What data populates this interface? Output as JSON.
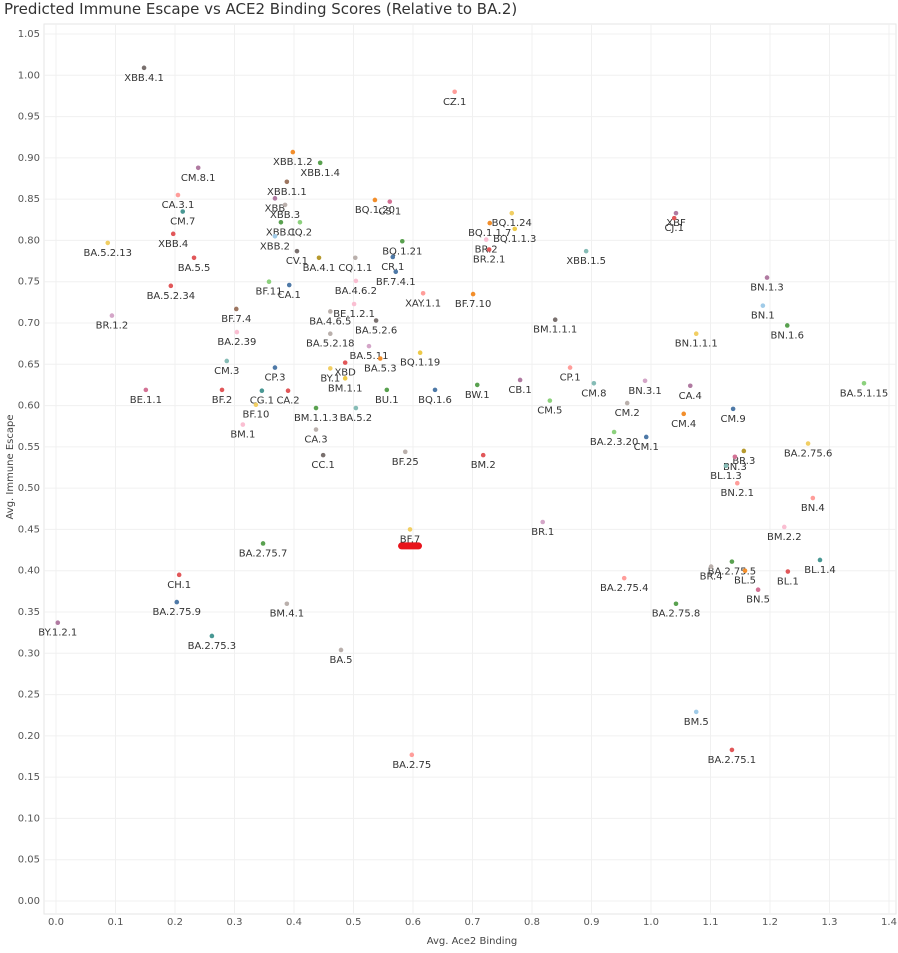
{
  "chart_data": {
    "type": "scatter",
    "title": "Predicted Immune Escape vs ACE2 Binding Scores (Relative to BA.2)",
    "x_label": "Avg. Ace2 Binding",
    "y_label": "Avg. Immune Escape",
    "xlim": [
      0,
      1.4
    ],
    "ylim": [
      0,
      1.05
    ],
    "xticks": [
      {
        "value": 0,
        "label": "0.0"
      },
      0.1,
      0.2,
      0.3,
      0.4,
      0.5,
      0.6,
      0.7,
      0.8,
      0.9,
      {
        "value": 1,
        "label": "1.0"
      },
      1.1,
      1.2,
      1.3,
      1.4
    ],
    "yticks": [
      {
        "value": 0,
        "label": "0.00"
      },
      0.05,
      {
        "value": 0.1,
        "label": "0.10"
      },
      0.15,
      {
        "value": 0.2,
        "label": "0.20"
      },
      0.25,
      {
        "value": 0.3,
        "label": "0.30"
      },
      0.35,
      {
        "value": 0.4,
        "label": "0.40"
      },
      0.45,
      {
        "value": 0.5,
        "label": "0.50"
      },
      0.55,
      {
        "value": 0.6,
        "label": "0.60"
      },
      0.65,
      {
        "value": 0.7,
        "label": "0.70"
      },
      0.75,
      {
        "value": 0.8,
        "label": "0.80"
      },
      0.85,
      {
        "value": 0.9,
        "label": "0.90"
      },
      0.95,
      {
        "value": 1,
        "label": "1.00"
      },
      1.05
    ],
    "grid": true,
    "highlight": "BF.7",
    "highlight_color": "#e8141c",
    "labels": [
      "XBB.4.1",
      "CZ.1",
      "XBB.1.2",
      "XBB.1.4",
      "CM.8.1",
      "XBB.1.1",
      "XBB",
      "XBB.3",
      "CA.3.1",
      "BQ.1.20",
      "CS.1",
      "BQ.1.24",
      "XBF",
      "CJ.1",
      "CM.7",
      "XBB.1",
      "CQ.2",
      "BQ.1.1.7",
      "BQ.1.1.3",
      "XBB.4",
      "BQ.1.21",
      "BR.2",
      "XBB.2",
      "BA.5.2.13",
      "CV.1",
      "BR.2.1",
      "XBB.1.5",
      "CR.1",
      "BA.4.1",
      "CQ.1.1",
      "BA.5.5",
      "BF.7.4.1",
      "BN.1.3",
      "BF.11",
      "CA.1",
      "BA.4.6.2",
      "XAY.1.1",
      "BA.5.2.34",
      "BN.1",
      "BF.7.10",
      "BE.1.2.1",
      "BM.1.1.1",
      "BR.1.2",
      "BF.7.4",
      "BA.4.6.5",
      "BN.1.6",
      "BA.5.2.6",
      "BA.5.2.18",
      "BN.1.1.1",
      "BA.2.39",
      "BA.5.11",
      "BQ.1.19",
      "BA.5.3",
      "XBD",
      "CM.3",
      "CP.3",
      "BY.1",
      "CP.1",
      "BM.1.1",
      "CB.1",
      "CM.8",
      "BN.3.1",
      "BW.1",
      "CA.4",
      "BA.5.1.15",
      "CG.1",
      "CA.2",
      "BU.1",
      "BE.1.1",
      "BF.2",
      "BQ.1.6",
      "BA.5.2",
      "CM.5",
      "CM.2",
      "BF.10",
      "BM.1.1.3",
      "CM.9",
      "CM.4",
      "BM.1",
      "CA.3",
      "BA.2.3.20",
      "CM.1",
      "BA.2.75.6",
      "BR.3",
      "BN.3",
      "CC.1",
      "BF.25",
      "BM.2",
      "BL.1.3",
      "BN.2.1",
      "BN.4",
      "BR.1",
      "BM.2.2",
      "BF.7",
      "BA.2.75.7",
      "BL.1.4",
      "BA.2.75.5",
      "BL.1",
      "BR.4",
      "BL.5",
      "CH.1",
      "BA.2.75.4",
      "BN.5",
      "BA.2.75.9",
      "BM.4.1",
      "BA.2.75.8",
      "BY.1.2.1",
      "BA.2.75.3",
      "BA.5",
      "BM.5",
      "BA.2.75",
      "BA.2.75.1"
    ],
    "x": [
      0.148,
      0.67,
      0.398,
      0.444,
      0.239,
      0.388,
      0.368,
      0.385,
      0.205,
      0.536,
      0.561,
      0.766,
      1.042,
      1.039,
      0.213,
      0.378,
      0.41,
      0.729,
      0.771,
      0.197,
      0.582,
      0.723,
      0.368,
      0.087,
      0.405,
      0.728,
      0.891,
      0.566,
      0.442,
      0.503,
      0.232,
      0.571,
      1.195,
      0.358,
      0.392,
      0.504,
      0.617,
      0.193,
      1.188,
      0.701,
      0.501,
      0.839,
      0.094,
      0.303,
      0.461,
      1.229,
      0.538,
      0.461,
      1.076,
      0.304,
      0.526,
      0.612,
      0.545,
      0.486,
      0.287,
      0.368,
      0.461,
      0.864,
      0.486,
      0.78,
      0.904,
      0.99,
      0.708,
      1.066,
      1.358,
      0.346,
      0.39,
      0.556,
      0.151,
      0.279,
      0.637,
      0.504,
      0.83,
      0.96,
      0.336,
      0.437,
      1.138,
      1.055,
      0.314,
      0.437,
      0.938,
      0.992,
      1.264,
      1.156,
      1.141,
      0.449,
      0.587,
      0.718,
      1.126,
      1.145,
      1.272,
      0.818,
      1.224,
      0.595,
      0.348,
      1.284,
      1.136,
      1.23,
      1.101,
      1.158,
      0.207,
      0.955,
      1.18,
      0.203,
      0.388,
      1.042,
      0.003,
      0.262,
      0.479,
      1.076,
      0.598,
      1.136
    ],
    "values": [
      1.009,
      0.98,
      0.907,
      0.894,
      0.888,
      0.871,
      0.851,
      0.843,
      0.855,
      0.849,
      0.847,
      0.833,
      0.833,
      0.827,
      0.835,
      0.822,
      0.822,
      0.821,
      0.814,
      0.808,
      0.799,
      0.801,
      0.805,
      0.797,
      0.787,
      0.789,
      0.787,
      0.78,
      0.779,
      0.779,
      0.779,
      0.762,
      0.755,
      0.75,
      0.746,
      0.751,
      0.736,
      0.745,
      0.721,
      0.735,
      0.723,
      0.704,
      0.709,
      0.717,
      0.714,
      0.697,
      0.703,
      0.687,
      0.687,
      0.689,
      0.672,
      0.664,
      0.657,
      0.652,
      0.654,
      0.646,
      0.645,
      0.646,
      0.633,
      0.631,
      0.627,
      0.63,
      0.625,
      0.624,
      0.627,
      0.618,
      0.618,
      0.619,
      0.619,
      0.619,
      0.619,
      0.597,
      0.606,
      0.603,
      0.601,
      0.597,
      0.596,
      0.59,
      0.577,
      0.571,
      0.568,
      0.562,
      0.554,
      0.545,
      0.538,
      0.54,
      0.544,
      0.54,
      0.527,
      0.506,
      0.488,
      0.459,
      0.453,
      0.45,
      0.433,
      0.413,
      0.411,
      0.399,
      0.405,
      0.4,
      0.395,
      0.391,
      0.377,
      0.362,
      0.36,
      0.36,
      0.337,
      0.321,
      0.304,
      0.229,
      0.177,
      0.183
    ],
    "colors": [
      "#79706e",
      "#ff9d9a",
      "#f28e2b",
      "#59a14f",
      "#b07aa1",
      "#9c755f",
      "#af7aa1",
      "#bab0ac",
      "#ff9d9a",
      "#f28e2b",
      "#d37295",
      "#f1ce63",
      "#b07aa1",
      "#e15759",
      "#499894",
      "#59a14f",
      "#8cd17d",
      "#f28e2b",
      "#edc948",
      "#e15759",
      "#59a14f",
      "#fabfd2",
      "#a0cbe8",
      "#f1ce63",
      "#79706e",
      "#e15759",
      "#86bcb6",
      "#4e79a7",
      "#b6992d",
      "#bab0ac",
      "#e15759",
      "#4e79a7",
      "#b07aa1",
      "#8cd17d",
      "#4e79a7",
      "#fabfd2",
      "#ff9d9a",
      "#e15759",
      "#a0cbe8",
      "#f28e2b",
      "#fabfd2",
      "#79706e",
      "#d4a6c8",
      "#9d7660",
      "#bab0ac",
      "#59a14f",
      "#79706e",
      "#bab0ac",
      "#f1ce63",
      "#fabfd2",
      "#d4a6c8",
      "#edc948",
      "#f28e2b",
      "#e15759",
      "#86bcb6",
      "#4e79a7",
      "#f1ce63",
      "#ff9d9a",
      "#edc948",
      "#b07aa1",
      "#86bcb6",
      "#d4a6c8",
      "#59a14f",
      "#b07aa1",
      "#8cd17d",
      "#499894",
      "#e15759",
      "#59a14f",
      "#d37295",
      "#e15759",
      "#4e79a7",
      "#86bcb6",
      "#8cd17d",
      "#bab0ac",
      "#f1ce63",
      "#59a14f",
      "#4e79a7",
      "#f28e2b",
      "#fabfd2",
      "#bab0ac",
      "#8cd17d",
      "#4e79a7",
      "#f1ce63",
      "#b6992d",
      "#d37295",
      "#79706e",
      "#bab0ac",
      "#e15759",
      "#86bcb6",
      "#ff9d9a",
      "#ff9d9a",
      "#d4a6c8",
      "#fabfd2",
      "#f1ce63",
      "#59a14f",
      "#499894",
      "#59a14f",
      "#e15759",
      "#bab0ac",
      "#f28e2b",
      "#e15759",
      "#ff9d9a",
      "#d37295",
      "#4e79a7",
      "#bab0ac",
      "#59a14f",
      "#b07aa1",
      "#499894",
      "#bab0ac",
      "#a0cbe8",
      "#ff9d9a",
      "#e15759"
    ]
  }
}
